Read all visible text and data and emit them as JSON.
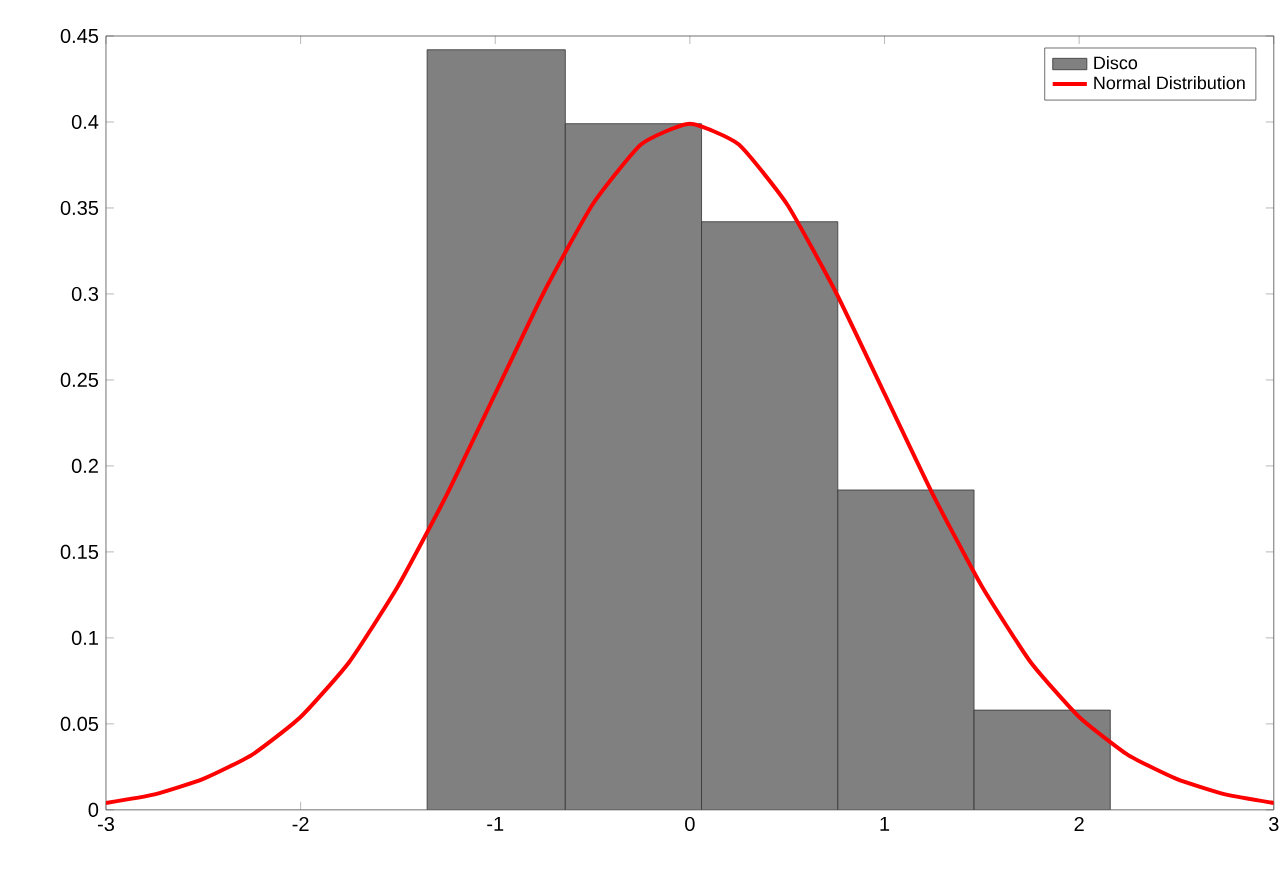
{
  "chart_data": {
    "type": "histogram",
    "series": [
      {
        "name": "Disco",
        "color": "#808080",
        "bins": [
          -1.35,
          -0.64,
          0.06,
          0.76,
          1.46,
          2.16
        ],
        "values": [
          0.442,
          0.399,
          0.342,
          0.186,
          0.058
        ]
      },
      {
        "name": "Normal Distribution",
        "type": "line",
        "color": "#ff0000",
        "x": [
          -3,
          -2.75,
          -2.5,
          -2.25,
          -2,
          -1.75,
          -1.5,
          -1.25,
          -1,
          -0.75,
          -0.5,
          -0.25,
          0,
          0.25,
          0.5,
          0.75,
          1,
          1.25,
          1.5,
          1.75,
          2,
          2.25,
          2.5,
          2.75,
          3
        ],
        "values": [
          0.004,
          0.009,
          0.018,
          0.032,
          0.054,
          0.086,
          0.13,
          0.183,
          0.242,
          0.301,
          0.352,
          0.387,
          0.399,
          0.387,
          0.352,
          0.301,
          0.242,
          0.183,
          0.13,
          0.086,
          0.054,
          0.032,
          0.018,
          0.009,
          0.004
        ]
      }
    ],
    "xlim": [
      -3,
      3
    ],
    "ylim": [
      0,
      0.45
    ],
    "xticks": [
      -3,
      -2,
      -1,
      0,
      1,
      2,
      3
    ],
    "yticks": [
      0,
      0.05,
      0.1,
      0.15,
      0.2,
      0.25,
      0.3,
      0.35,
      0.4,
      0.45
    ],
    "legend": "top right"
  }
}
